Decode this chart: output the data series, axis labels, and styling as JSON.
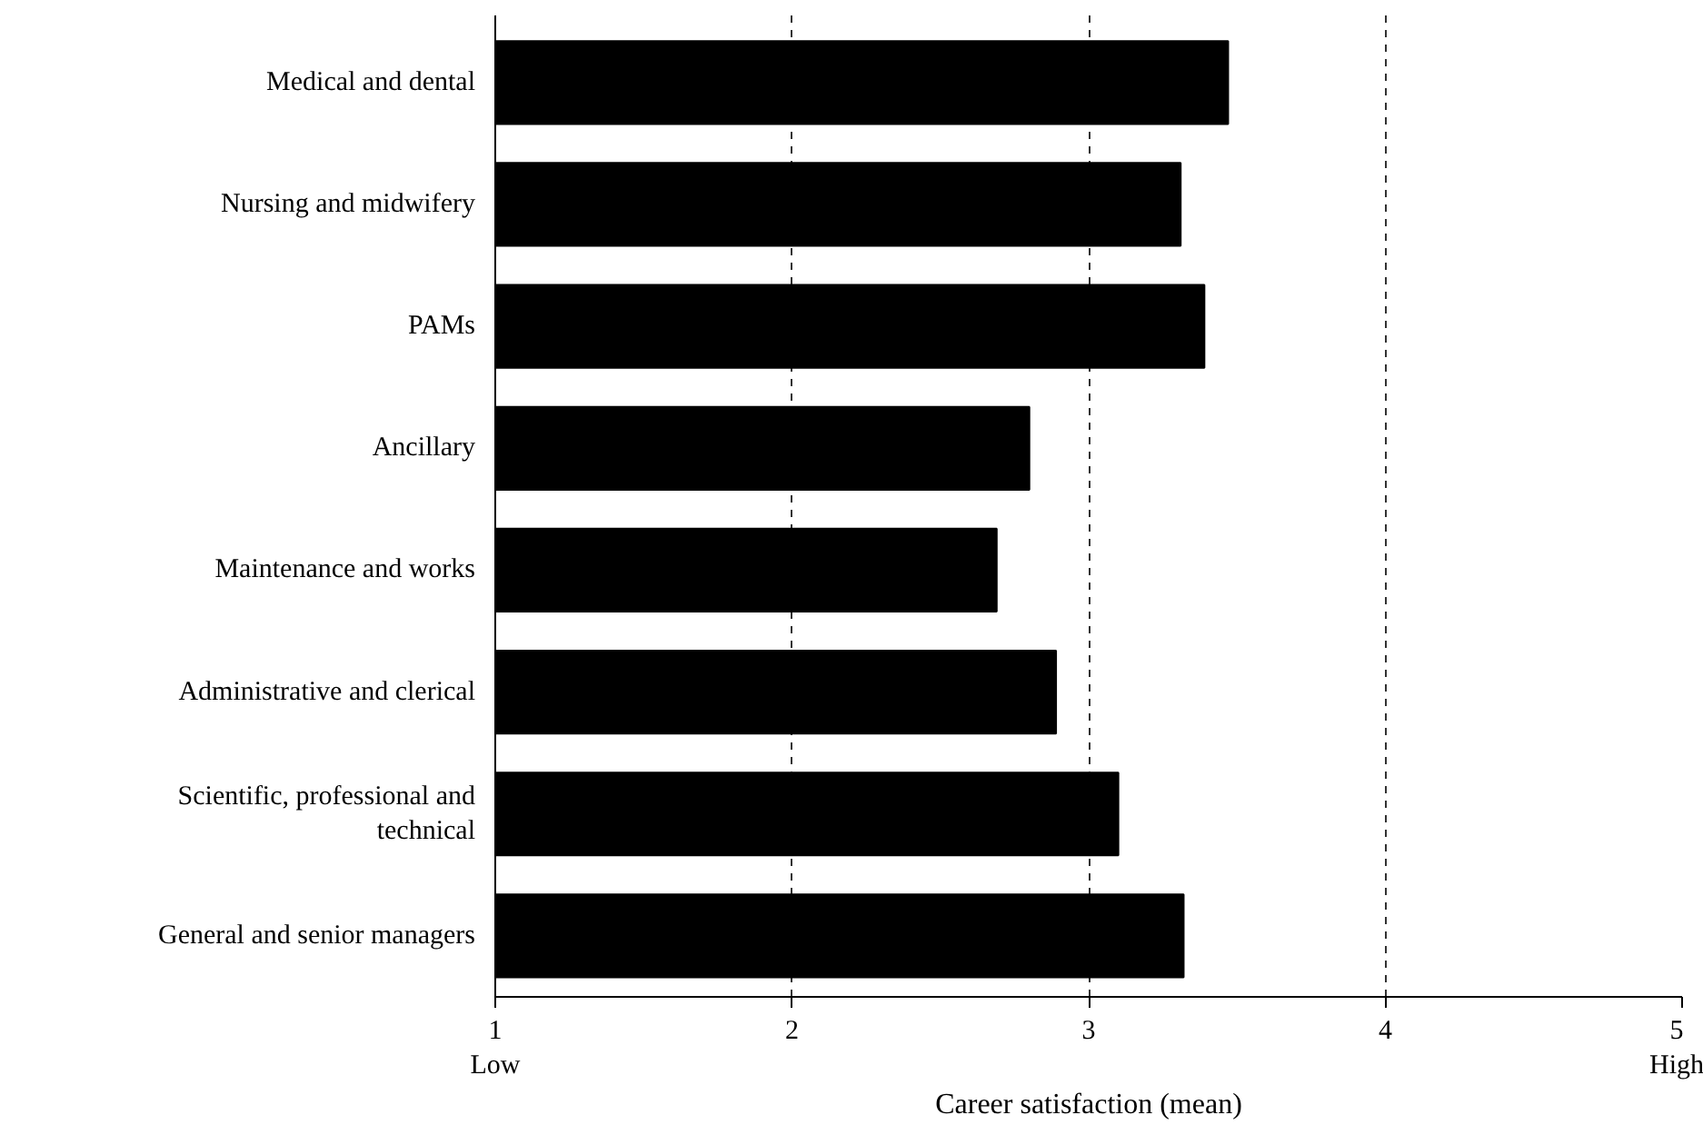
{
  "chart_data": {
    "type": "bar",
    "orientation": "horizontal",
    "xlabel": "Career satisfaction (mean)",
    "categories": [
      "Medical and dental",
      "Nursing and midwifery",
      "PAMs",
      "Ancillary",
      "Maintenance and works",
      "Administrative and clerical",
      "Scientific, professional and technical",
      "General and senior managers"
    ],
    "values": [
      3.47,
      3.31,
      3.39,
      2.8,
      2.69,
      2.89,
      3.1,
      3.32
    ],
    "color": "#000000",
    "xlim": [
      1,
      5
    ],
    "xticks": [
      {
        "value": 1,
        "label": "1\nLow"
      },
      2,
      3,
      4,
      {
        "value": 5,
        "label": "5\nHigh"
      }
    ],
    "grid": "x"
  }
}
